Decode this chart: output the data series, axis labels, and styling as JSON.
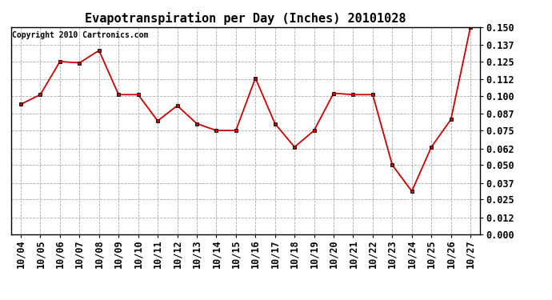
{
  "title": "Evapotranspiration per Day (Inches) 20101028",
  "copyright": "Copyright 2010 Cartronics.com",
  "dates": [
    "10/04",
    "10/05",
    "10/06",
    "10/07",
    "10/08",
    "10/09",
    "10/10",
    "10/11",
    "10/12",
    "10/13",
    "10/14",
    "10/15",
    "10/16",
    "10/17",
    "10/18",
    "10/19",
    "10/20",
    "10/21",
    "10/22",
    "10/23",
    "10/24",
    "10/25",
    "10/26",
    "10/27"
  ],
  "values": [
    0.094,
    0.101,
    0.125,
    0.124,
    0.133,
    0.101,
    0.101,
    0.082,
    0.093,
    0.08,
    0.075,
    0.075,
    0.113,
    0.08,
    0.063,
    0.075,
    0.102,
    0.101,
    0.101,
    0.05,
    0.031,
    0.063,
    0.083,
    0.15
  ],
  "line_color": "#cc0000",
  "marker_color": "#000000",
  "bg_color": "#ffffff",
  "plot_bg_color": "#ffffff",
  "grid_color": "#aaaaaa",
  "ylim": [
    0.0,
    0.15
  ],
  "yticks": [
    0.0,
    0.012,
    0.025,
    0.037,
    0.05,
    0.062,
    0.075,
    0.087,
    0.1,
    0.112,
    0.125,
    0.137,
    0.15
  ],
  "title_fontsize": 11,
  "tick_fontsize": 8.5,
  "copyright_fontsize": 7
}
